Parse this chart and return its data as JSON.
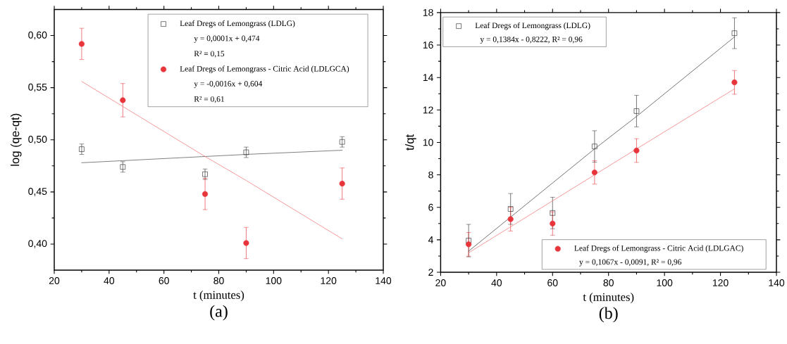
{
  "chart_data": [
    {
      "type": "scatter",
      "title": "(a)",
      "xlabel": "t (minutes)",
      "ylabel": "log (qe-qt)",
      "x": [
        30,
        45,
        75,
        90,
        125
      ],
      "series": [
        {
          "name": "Leaf Dregs of Lemongrass (LDLG)",
          "type": "scatter",
          "marker": "square",
          "color": "#333333",
          "values": [
            0.491,
            0.474,
            0.467,
            0.488,
            0.498
          ],
          "errors": [
            0.005,
            0.005,
            0.005,
            0.005,
            0.005
          ]
        },
        {
          "name": "Leaf Dregs of Lemongrass - Citric Acid (LDLGCA)",
          "type": "scatter",
          "marker": "circle",
          "color": "#e8353b",
          "values": [
            0.592,
            0.538,
            0.448,
            0.401,
            0.458
          ],
          "errors": [
            0.015,
            0.016,
            0.015,
            0.015,
            0.015
          ]
        },
        {
          "type": "line",
          "color": "#606060",
          "values": [
            0.478,
            0.48,
            0.484,
            0.486,
            0.49
          ]
        },
        {
          "type": "line",
          "color": "#f47f7f",
          "values": [
            0.556,
            0.532,
            0.484,
            0.461,
            0.405
          ]
        }
      ],
      "annotations": [
        "y = 0,0001x + 0,474",
        "R² = 0,15",
        "y = -0,0016x + 0,604",
        "R² = 0,61"
      ],
      "legend": "top right",
      "xlim": [
        20,
        140
      ],
      "xticks": [
        20,
        40,
        60,
        80,
        100,
        120,
        140
      ],
      "ylim": [
        0.375,
        0.625
      ],
      "yticks": [
        {
          "value": 0.4,
          "label": "0,40"
        },
        {
          "value": 0.45,
          "label": "0,45"
        },
        {
          "value": 0.5,
          "label": "0,50"
        },
        {
          "value": 0.55,
          "label": "0,55"
        },
        {
          "value": 0.6,
          "label": "0,60"
        }
      ]
    },
    {
      "type": "scatter",
      "title": "(b)",
      "xlabel": "t (minutes)",
      "ylabel": "t/qt",
      "x": [
        30,
        45,
        60,
        75,
        90,
        125
      ],
      "series": [
        {
          "name": "Leaf Dregs of Lemongrass (LDLG)",
          "type": "scatter",
          "marker": "square",
          "color": "#333333",
          "values": [
            3.95,
            5.9,
            5.65,
            9.75,
            11.93,
            16.73
          ],
          "errors": [
            1.0,
            0.95,
            0.97,
            0.97,
            0.97,
            0.95
          ]
        },
        {
          "name": "Leaf Dregs of Lemongrass - Citric Acid (LDLGAC)",
          "type": "scatter",
          "marker": "circle",
          "color": "#e8353b",
          "values": [
            3.72,
            5.27,
            5.0,
            8.15,
            9.5,
            13.7
          ],
          "errors": [
            0.73,
            0.73,
            0.72,
            0.72,
            0.73,
            0.73
          ]
        },
        {
          "type": "line",
          "color": "#505050",
          "values": [
            3.3,
            5.4,
            7.5,
            9.6,
            11.6,
            16.5
          ]
        },
        {
          "type": "line",
          "color": "#f47f7f",
          "values": [
            3.2,
            4.8,
            6.4,
            8.0,
            9.6,
            13.3
          ]
        }
      ],
      "annotations": [
        "y = 0,1384x - 0,8222, R² = 0,96",
        "y = 0,1067x - 0,0091, R² = 0,96"
      ],
      "legend": "top left",
      "xlim": [
        20,
        140
      ],
      "xticks": [
        20,
        40,
        60,
        80,
        100,
        120,
        140
      ],
      "ylim": [
        2,
        18
      ],
      "yticks": [
        2,
        4,
        6,
        8,
        10,
        12,
        14,
        16,
        18
      ]
    }
  ]
}
